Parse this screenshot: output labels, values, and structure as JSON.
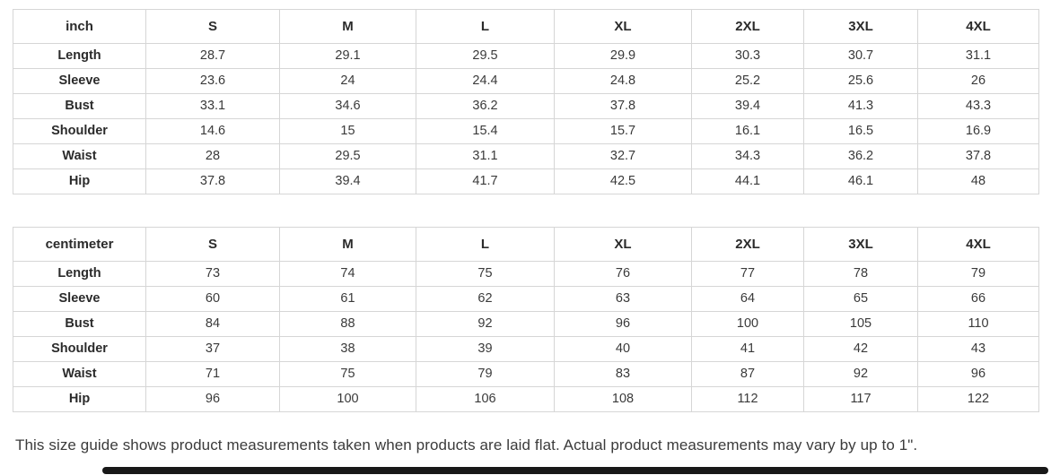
{
  "tables": [
    {
      "unit_header": "inch",
      "sizes": [
        "S",
        "M",
        "L",
        "XL",
        "2XL",
        "3XL",
        "4XL"
      ],
      "rows": [
        {
          "label": "Length",
          "values": [
            "28.7",
            "29.1",
            "29.5",
            "29.9",
            "30.3",
            "30.7",
            "31.1"
          ]
        },
        {
          "label": "Sleeve",
          "values": [
            "23.6",
            "24",
            "24.4",
            "24.8",
            "25.2",
            "25.6",
            "26"
          ]
        },
        {
          "label": "Bust",
          "values": [
            "33.1",
            "34.6",
            "36.2",
            "37.8",
            "39.4",
            "41.3",
            "43.3"
          ]
        },
        {
          "label": "Shoulder",
          "values": [
            "14.6",
            "15",
            "15.4",
            "15.7",
            "16.1",
            "16.5",
            "16.9"
          ]
        },
        {
          "label": "Waist",
          "values": [
            "28",
            "29.5",
            "31.1",
            "32.7",
            "34.3",
            "36.2",
            "37.8"
          ]
        },
        {
          "label": "Hip",
          "values": [
            "37.8",
            "39.4",
            "41.7",
            "42.5",
            "44.1",
            "46.1",
            "48"
          ]
        }
      ]
    },
    {
      "unit_header": "centimeter",
      "sizes": [
        "S",
        "M",
        "L",
        "XL",
        "2XL",
        "3XL",
        "4XL"
      ],
      "rows": [
        {
          "label": "Length",
          "values": [
            "73",
            "74",
            "75",
            "76",
            "77",
            "78",
            "79"
          ]
        },
        {
          "label": "Sleeve",
          "values": [
            "60",
            "61",
            "62",
            "63",
            "64",
            "65",
            "66"
          ]
        },
        {
          "label": "Bust",
          "values": [
            "84",
            "88",
            "92",
            "96",
            "100",
            "105",
            "110"
          ]
        },
        {
          "label": "Shoulder",
          "values": [
            "37",
            "38",
            "39",
            "40",
            "41",
            "42",
            "43"
          ]
        },
        {
          "label": "Waist",
          "values": [
            "71",
            "75",
            "79",
            "83",
            "87",
            "92",
            "96"
          ]
        },
        {
          "label": "Hip",
          "values": [
            "96",
            "100",
            "106",
            "108",
            "112",
            "117",
            "122"
          ]
        }
      ]
    }
  ],
  "note": "This size guide shows product measurements taken when products are laid flat. Actual product measurements may vary by up to 1\".",
  "colors": {
    "background": "#ffffff",
    "table_border": "#d6d6d6",
    "header_text": "#2b2b2b",
    "cell_text": "#3a3a3a",
    "note_text": "#3b3b3b",
    "scrollbar": "#181818"
  }
}
